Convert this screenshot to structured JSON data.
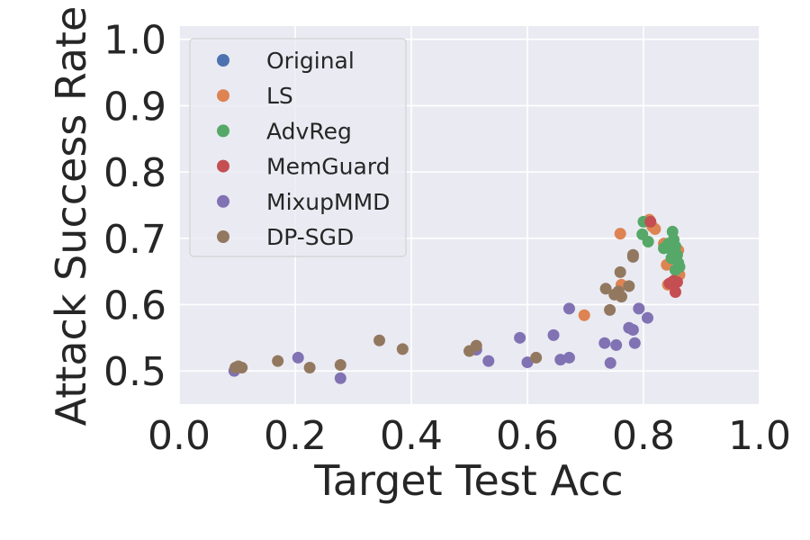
{
  "chart_data": {
    "type": "scatter",
    "title": "",
    "xlabel": "Target Test Acc",
    "ylabel": "Attack Success Rate",
    "xlim": [
      0.0,
      1.0
    ],
    "ylim": [
      0.45,
      1.02
    ],
    "xticks": [
      0.0,
      0.2,
      0.4,
      0.6,
      0.8,
      1.0
    ],
    "xtick_labels": [
      "0.0",
      "0.2",
      "0.4",
      "0.6",
      "0.8",
      "1.0"
    ],
    "yticks": [
      0.5,
      0.6,
      0.7,
      0.8,
      0.9,
      1.0
    ],
    "ytick_labels": [
      "0.5",
      "0.6",
      "0.7",
      "0.8",
      "0.9",
      "1.0"
    ],
    "grid": true,
    "legend_position": "top-left",
    "series": [
      {
        "name": "Original",
        "color": "#4c72b0",
        "points": []
      },
      {
        "name": "LS",
        "color": "#dd8452",
        "points": [
          [
            0.76,
            0.707
          ],
          [
            0.81,
            0.728
          ],
          [
            0.815,
            0.718
          ],
          [
            0.82,
            0.714
          ],
          [
            0.835,
            0.692
          ],
          [
            0.84,
            0.66
          ],
          [
            0.842,
            0.63
          ],
          [
            0.855,
            0.687
          ],
          [
            0.86,
            0.682
          ],
          [
            0.862,
            0.645
          ],
          [
            0.698,
            0.584
          ],
          [
            0.762,
            0.63
          ]
        ]
      },
      {
        "name": "AdvReg",
        "color": "#55a868",
        "points": [
          [
            0.8,
            0.725
          ],
          [
            0.808,
            0.695
          ],
          [
            0.798,
            0.706
          ],
          [
            0.835,
            0.685
          ],
          [
            0.843,
            0.692
          ],
          [
            0.85,
            0.71
          ],
          [
            0.852,
            0.698
          ],
          [
            0.855,
            0.688
          ],
          [
            0.858,
            0.675
          ],
          [
            0.86,
            0.663
          ],
          [
            0.862,
            0.657
          ],
          [
            0.855,
            0.652
          ],
          [
            0.85,
            0.68
          ],
          [
            0.848,
            0.67
          ]
        ]
      },
      {
        "name": "MemGuard",
        "color": "#c44e52",
        "points": [
          [
            0.812,
            0.725
          ],
          [
            0.845,
            0.632
          ],
          [
            0.852,
            0.636
          ],
          [
            0.858,
            0.634
          ],
          [
            0.855,
            0.619
          ]
        ]
      },
      {
        "name": "MixupMMD",
        "color": "#8172b3",
        "points": [
          [
            0.095,
            0.5
          ],
          [
            0.205,
            0.52
          ],
          [
            0.278,
            0.489
          ],
          [
            0.512,
            0.532
          ],
          [
            0.533,
            0.515
          ],
          [
            0.587,
            0.55
          ],
          [
            0.6,
            0.513
          ],
          [
            0.645,
            0.554
          ],
          [
            0.657,
            0.517
          ],
          [
            0.672,
            0.594
          ],
          [
            0.672,
            0.52
          ],
          [
            0.733,
            0.542
          ],
          [
            0.743,
            0.512
          ],
          [
            0.753,
            0.539
          ],
          [
            0.775,
            0.565
          ],
          [
            0.782,
            0.562
          ],
          [
            0.785,
            0.542
          ],
          [
            0.792,
            0.594
          ],
          [
            0.807,
            0.58
          ]
        ]
      },
      {
        "name": "DP-SGD",
        "color": "#937860",
        "points": [
          [
            0.097,
            0.505
          ],
          [
            0.102,
            0.507
          ],
          [
            0.108,
            0.505
          ],
          [
            0.17,
            0.515
          ],
          [
            0.225,
            0.505
          ],
          [
            0.278,
            0.509
          ],
          [
            0.345,
            0.546
          ],
          [
            0.385,
            0.533
          ],
          [
            0.5,
            0.53
          ],
          [
            0.512,
            0.538
          ],
          [
            0.615,
            0.52
          ],
          [
            0.735,
            0.624
          ],
          [
            0.742,
            0.592
          ],
          [
            0.75,
            0.615
          ],
          [
            0.757,
            0.62
          ],
          [
            0.76,
            0.649
          ],
          [
            0.762,
            0.612
          ],
          [
            0.775,
            0.628
          ],
          [
            0.782,
            0.675
          ],
          [
            0.782,
            0.672
          ]
        ]
      }
    ]
  }
}
